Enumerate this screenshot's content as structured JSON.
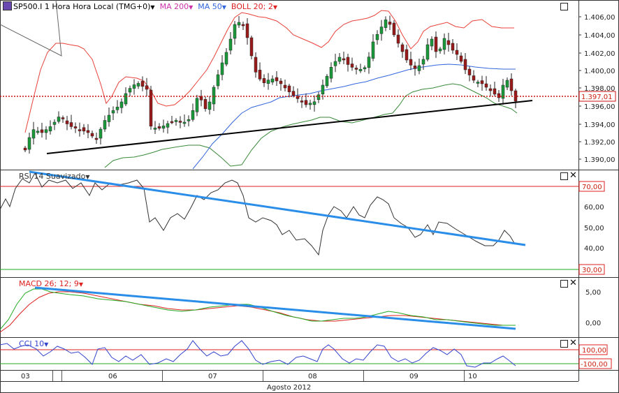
{
  "header": {
    "symbol": "SP500.I",
    "timeframe": "1 Hora Hora Local (TMG+0)",
    "ma200": "MA 200",
    "ma50": "MA 50",
    "boll": "BOLL 20; 2",
    "current_price": "1.397,01"
  },
  "price_axis": [
    "1.406,00",
    "1.404,00",
    "1.402,00",
    "1.400,00",
    "1.398,00",
    "1.396,00",
    "1.394,00",
    "1.392,00",
    "1.390,00"
  ],
  "rsi": {
    "label": "RSI 14 Suavizado",
    "axis": [
      "70,00",
      "60,00",
      "50,00",
      "40,00",
      "30,00"
    ]
  },
  "macd": {
    "label": "MACD 26; 12; 9",
    "axis": [
      "5,00",
      "0,00"
    ]
  },
  "cci": {
    "label": "CCI 10",
    "axis": [
      "100,00",
      "-100,00"
    ]
  },
  "time_axis": {
    "days": [
      "03",
      "06",
      "07",
      "08",
      "09",
      "10"
    ],
    "month": "Agosto 2012"
  },
  "colors": {
    "bollinger": "#e8413a",
    "ma50": "#3366dd",
    "ma200": "#cc33aa",
    "trend_blue": "#2a8de8",
    "level_red": "#dd2222",
    "level_green": "#22aa22",
    "price_dotted": "#cc1111"
  }
}
